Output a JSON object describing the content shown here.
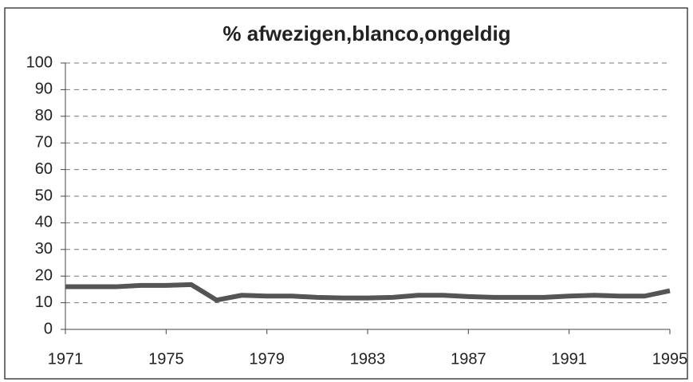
{
  "chart_data": {
    "type": "line",
    "title": "% afwezigen,blanco,ongeldig",
    "x": [
      1971,
      1972,
      1973,
      1974,
      1975,
      1976,
      1977,
      1978,
      1979,
      1980,
      1981,
      1982,
      1983,
      1984,
      1985,
      1986,
      1987,
      1988,
      1989,
      1990,
      1991,
      1992,
      1993,
      1994,
      1995
    ],
    "series": [
      {
        "name": "% afwezigen,blanco,ongeldig",
        "color": "#555555",
        "values": [
          16,
          16,
          16,
          16.5,
          16.5,
          16.8,
          11,
          12.8,
          12.5,
          12.5,
          12,
          11.8,
          11.8,
          12,
          12.8,
          12.8,
          12.3,
          12,
          12,
          12,
          12.5,
          12.8,
          12.5,
          12.5,
          14.5
        ]
      }
    ],
    "xlim": [
      1971,
      1995
    ],
    "xticks": [
      1971,
      1975,
      1979,
      1983,
      1987,
      1991,
      1995
    ],
    "ylim": [
      0,
      100
    ],
    "yticks": [
      0,
      10,
      20,
      30,
      40,
      50,
      60,
      70,
      80,
      90,
      100
    ],
    "grid": true
  }
}
